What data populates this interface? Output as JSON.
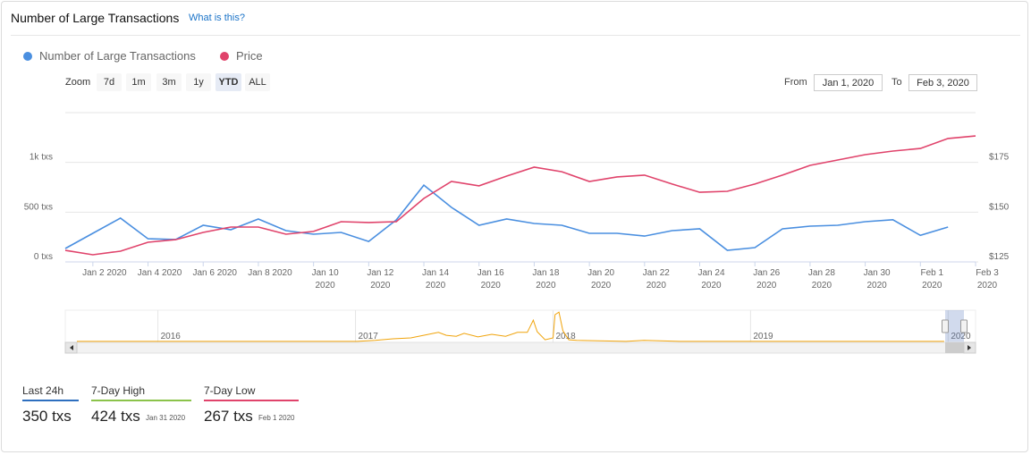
{
  "header": {
    "title": "Number of Large Transactions",
    "link": "What is this?"
  },
  "controls": {
    "zoom_label": "Zoom",
    "zoom_buttons": [
      "7d",
      "1m",
      "3m",
      "1y",
      "YTD",
      "ALL"
    ],
    "active_button": 4,
    "from_label": "From",
    "from_value": "Jan 1, 2020",
    "to_label": "To",
    "to_value": "Feb 3, 2020"
  },
  "chart_data": [
    {
      "type": "line",
      "x": [
        "2020-01-01",
        "2020-01-02",
        "2020-01-03",
        "2020-01-04",
        "2020-01-05",
        "2020-01-06",
        "2020-01-07",
        "2020-01-08",
        "2020-01-09",
        "2020-01-10",
        "2020-01-11",
        "2020-01-12",
        "2020-01-13",
        "2020-01-14",
        "2020-01-15",
        "2020-01-16",
        "2020-01-17",
        "2020-01-18",
        "2020-01-19",
        "2020-01-20",
        "2020-01-21",
        "2020-01-22",
        "2020-01-23",
        "2020-01-24",
        "2020-01-25",
        "2020-01-26",
        "2020-01-27",
        "2020-01-28",
        "2020-01-29",
        "2020-01-30",
        "2020-01-31",
        "2020-02-01",
        "2020-02-02",
        "2020-02-03"
      ],
      "series": [
        {
          "name": "Number of Large Transactions",
          "color": "#4a8fe0",
          "values": [
            135,
            287,
            440,
            233,
            225,
            368,
            323,
            431,
            314,
            278,
            296,
            206,
            422,
            772,
            548,
            368,
            431,
            386,
            368,
            287,
            287,
            260,
            314,
            332,
            117,
            144,
            332,
            359,
            368,
            404,
            424,
            267,
            350,
            null
          ]
        },
        {
          "name": "Price",
          "color": "#e0436b",
          "axis": "y2",
          "values": [
            130.8,
            128.6,
            130.4,
            134.9,
            136.2,
            139.8,
            142.5,
            142.5,
            138.9,
            140.3,
            145.2,
            144.8,
            145.2,
            156.9,
            165.4,
            163.2,
            168.1,
            172.6,
            170.3,
            165.4,
            167.7,
            168.6,
            164.1,
            160.0,
            160.5,
            164.1,
            168.6,
            173.5,
            176.2,
            178.9,
            180.7,
            182.0,
            187.0,
            188.3
          ]
        }
      ],
      "xlim": [
        "2020-01-01",
        "2020-02-03"
      ],
      "xticks": [
        {
          "value": "2020-01-02",
          "label": "Jan 2 2020"
        },
        {
          "value": "2020-01-04",
          "label": "Jan 4 2020"
        },
        {
          "value": "2020-01-06",
          "label": "Jan 6 2020"
        },
        {
          "value": "2020-01-08",
          "label": "Jan 8 2020"
        },
        {
          "value": "2020-01-10",
          "label": "Jan 10\n2020"
        },
        {
          "value": "2020-01-12",
          "label": "Jan 12\n2020"
        },
        {
          "value": "2020-01-14",
          "label": "Jan 14\n2020"
        },
        {
          "value": "2020-01-16",
          "label": "Jan 16\n2020"
        },
        {
          "value": "2020-01-18",
          "label": "Jan 18\n2020"
        },
        {
          "value": "2020-01-20",
          "label": "Jan 20\n2020"
        },
        {
          "value": "2020-01-22",
          "label": "Jan 22\n2020"
        },
        {
          "value": "2020-01-24",
          "label": "Jan 24\n2020"
        },
        {
          "value": "2020-01-26",
          "label": "Jan 26\n2020"
        },
        {
          "value": "2020-01-28",
          "label": "Jan 28\n2020"
        },
        {
          "value": "2020-01-30",
          "label": "Jan 30\n2020"
        },
        {
          "value": "2020-02-01",
          "label": "Feb 1\n2020"
        },
        {
          "value": "2020-02-03",
          "label": "Feb 3\n2020"
        }
      ],
      "ylim": [
        0,
        1500
      ],
      "yticks": [
        {
          "value": 0,
          "label": "0 txs"
        },
        {
          "value": 500,
          "label": "500 txs"
        },
        {
          "value": 1000,
          "label": "1k txs"
        }
      ],
      "y2lim": [
        125,
        200
      ],
      "y2ticks": [
        {
          "value": 125,
          "label": "$125"
        },
        {
          "value": 150,
          "label": "$150"
        },
        {
          "value": 175,
          "label": "$175"
        }
      ],
      "grid": true
    },
    {
      "type": "line",
      "color": "#f0a30a",
      "x": [
        2015.59,
        2017.01,
        2017.1,
        2017.19,
        2017.28,
        2017.37,
        2017.42,
        2017.46,
        2017.51,
        2017.55,
        2017.62,
        2017.69,
        2017.76,
        2017.82,
        2017.87,
        2017.9,
        2017.92,
        2017.96,
        2018.0,
        2018.01,
        2018.03,
        2018.05,
        2018.08,
        2018.12,
        2018.37,
        2018.46,
        2018.64,
        2019.98
      ],
      "values": [
        3,
        3,
        6,
        11,
        14,
        25,
        31,
        22,
        19,
        28,
        17,
        25,
        19,
        31,
        31,
        69,
        33,
        8,
        14,
        86,
        94,
        36,
        8,
        6,
        3,
        6,
        3,
        3
      ],
      "xlim": [
        2015.59,
        2020.08
      ],
      "ylim": [
        0,
        100
      ],
      "xticks": [
        2016,
        2017,
        2018,
        2019,
        2020
      ]
    }
  ],
  "stats": [
    {
      "label": "Last 24h",
      "value": "350 txs",
      "color": "#2e6fbf"
    },
    {
      "label": "7-Day High",
      "value": "424 txs",
      "date": "Jan 31 2020",
      "color": "#8bc34a"
    },
    {
      "label": "7-Day Low",
      "value": "267 txs",
      "date": "Feb 1 2020",
      "color": "#e0436b"
    }
  ]
}
